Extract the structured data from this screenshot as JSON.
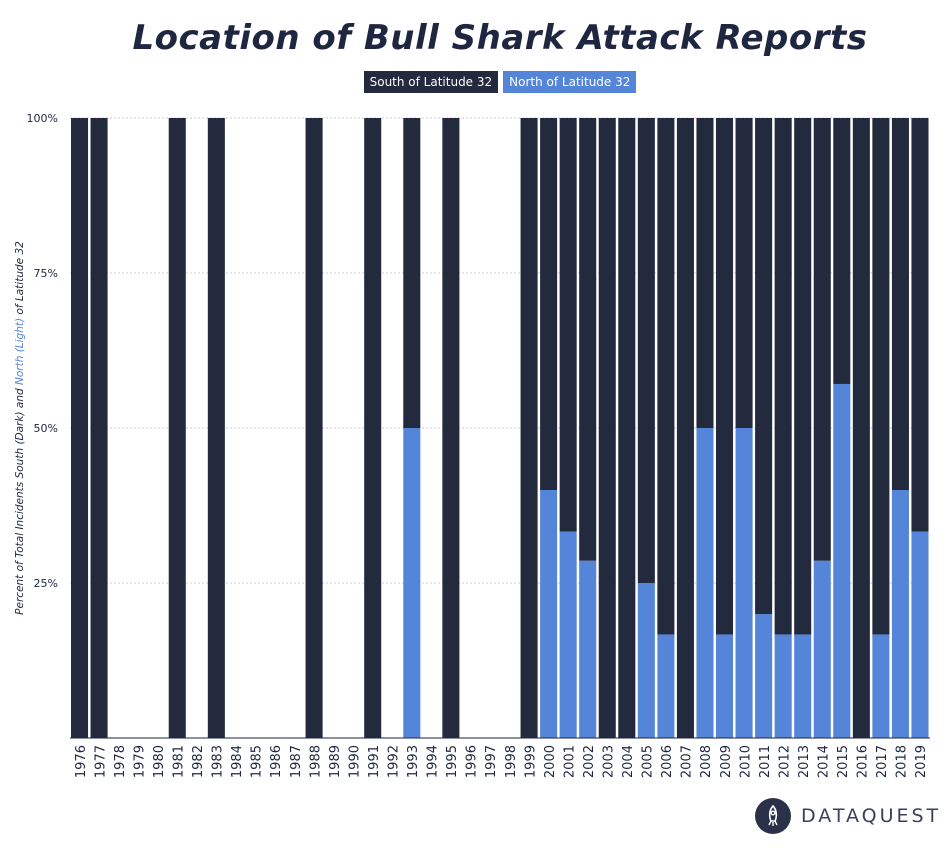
{
  "title": "Location of Bull Shark Attack Reports",
  "legend": {
    "dark_label": "South of Latitude 32",
    "light_label": "North of Latitude 32"
  },
  "logo": {
    "text": "DATAQUEST",
    "icon": "rocket-icon"
  },
  "colors": {
    "dark": "#232a3d",
    "light": "#5585d8",
    "grid": "#c9cdd6",
    "text": "#1e2640"
  },
  "chart_data": {
    "type": "bar",
    "stacked": true,
    "percent": true,
    "title": "Location of Bull Shark Attack Reports",
    "ylabel_parts": [
      {
        "text": "Percent of Total Incidents South (Dark) and ",
        "style": "dark"
      },
      {
        "text": "North (Light)",
        "style": "light"
      },
      {
        "text": " of Latitude 32",
        "style": "dark"
      }
    ],
    "ylim": [
      0,
      100
    ],
    "yticks": [
      25,
      50,
      75,
      100
    ],
    "ytick_labels": [
      "25%",
      "50%",
      "75%",
      "100%"
    ],
    "grid": true,
    "legend_position": "top-center",
    "categories": [
      "1976",
      "1977",
      "1978",
      "1979",
      "1980",
      "1981",
      "1982",
      "1983",
      "1984",
      "1985",
      "1986",
      "1987",
      "1988",
      "1989",
      "1990",
      "1991",
      "1992",
      "1993",
      "1994",
      "1995",
      "1996",
      "1997",
      "1998",
      "1999",
      "2000",
      "2001",
      "2002",
      "2003",
      "2004",
      "2005",
      "2006",
      "2007",
      "2008",
      "2009",
      "2010",
      "2011",
      "2012",
      "2013",
      "2014",
      "2015",
      "2016",
      "2017",
      "2018",
      "2019"
    ],
    "series": [
      {
        "name": "South of Latitude 32",
        "color": "#232a3d",
        "values": [
          100,
          100,
          null,
          null,
          null,
          100,
          null,
          100,
          null,
          null,
          null,
          null,
          100,
          null,
          null,
          100,
          null,
          50,
          null,
          100,
          null,
          null,
          null,
          100,
          60,
          66.7,
          71.4,
          100,
          100,
          75,
          83.3,
          100,
          50,
          83.3,
          50,
          80,
          83.3,
          83.3,
          71.4,
          42.9,
          100,
          83.3,
          60,
          66.7
        ]
      },
      {
        "name": "North of Latitude 32",
        "color": "#5585d8",
        "values": [
          0,
          0,
          null,
          null,
          null,
          0,
          null,
          0,
          null,
          null,
          null,
          null,
          0,
          null,
          null,
          0,
          null,
          50,
          null,
          0,
          null,
          null,
          null,
          0,
          40,
          33.3,
          28.6,
          0,
          0,
          25,
          16.7,
          0,
          50,
          16.7,
          50,
          20,
          16.7,
          16.7,
          28.6,
          57.1,
          0,
          16.7,
          40,
          33.3
        ]
      }
    ]
  }
}
